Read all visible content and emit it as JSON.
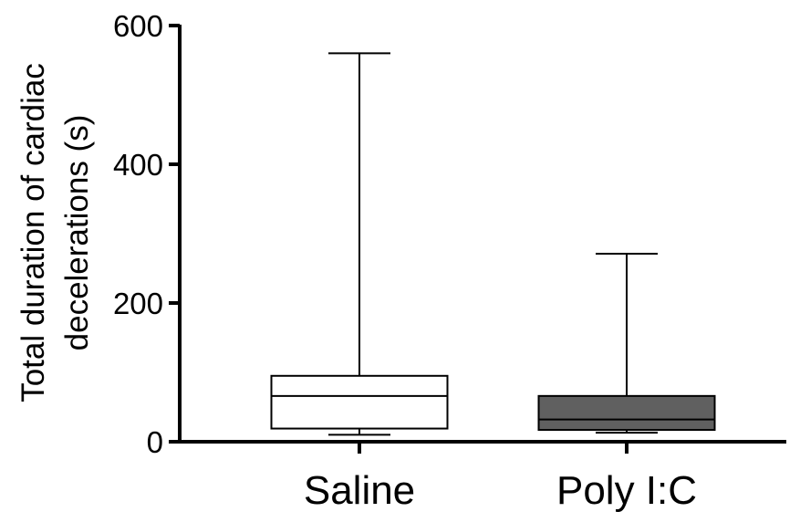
{
  "chart_data": {
    "type": "box",
    "ylabel_lines": [
      "Total duration of cardiac",
      "decelerations (s)"
    ],
    "xlabel": "",
    "ylim": [
      0,
      600
    ],
    "yticks": [
      0,
      200,
      400,
      600
    ],
    "ytick_labels": [
      "0",
      "200",
      "400",
      "600"
    ],
    "grid": false,
    "categories": [
      "Saline",
      "Poly I:C"
    ],
    "boxes": [
      {
        "label": "Saline",
        "min": 10,
        "q1": 19,
        "median": 66,
        "q3": 95,
        "max": 560,
        "fill": "#ffffff"
      },
      {
        "label": "Poly I:C",
        "min": 13,
        "q1": 17,
        "median": 32,
        "q3": 66,
        "max": 271,
        "fill": "#606060"
      }
    ]
  }
}
